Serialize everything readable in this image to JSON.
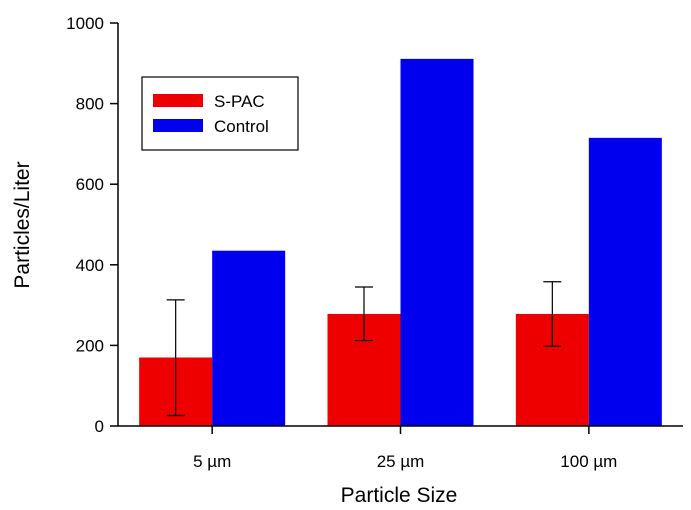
{
  "chart_data": {
    "type": "bar",
    "title": "",
    "xlabel": "Particle Size",
    "ylabel": "Particles/Liter",
    "categories": [
      "5 µm",
      "25 µm",
      "100 µm"
    ],
    "series": [
      {
        "name": "S-PAC",
        "color": "#ee0000",
        "values": [
          170,
          278,
          278
        ],
        "error_low": [
          26,
          212,
          198
        ],
        "error_high": [
          313,
          345,
          358
        ]
      },
      {
        "name": "Control",
        "color": "#0000ee",
        "values": [
          435,
          911,
          715
        ]
      }
    ],
    "ylim": [
      0,
      1000
    ],
    "yticks": [
      0,
      200,
      400,
      600,
      800,
      1000
    ],
    "grid": false,
    "legend_position": "top-left"
  }
}
